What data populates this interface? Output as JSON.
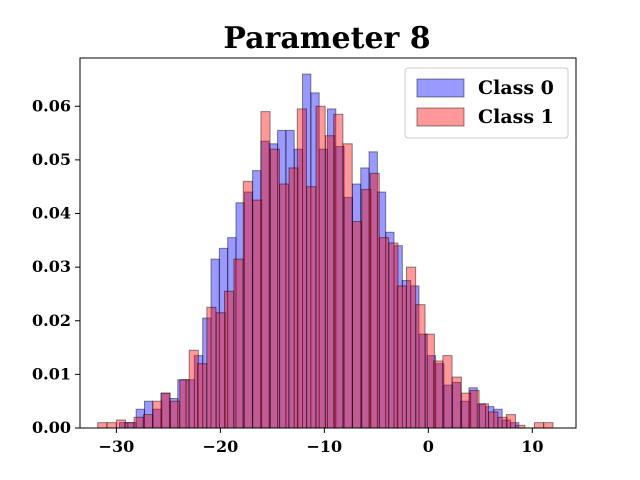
{
  "chart_data": {
    "type": "bar",
    "title": "Parameter 8",
    "xlabel": "",
    "ylabel": "",
    "xlim": [
      -33.5,
      14.2
    ],
    "ylim": [
      0,
      0.069
    ],
    "xticks": [
      -30,
      -20,
      -10,
      0,
      10
    ],
    "xtick_labels": [
      "−30",
      "−20",
      "−10",
      "0",
      "10"
    ],
    "yticks": [
      0.0,
      0.01,
      0.02,
      0.03,
      0.04,
      0.05,
      0.06
    ],
    "ytick_labels": [
      "0.00",
      "0.01",
      "0.02",
      "0.03",
      "0.04",
      "0.05",
      "0.06"
    ],
    "grid": false,
    "legend_position": "top-right",
    "series": [
      {
        "name": "Class 0",
        "color": "#0000ff",
        "bin_width": 0.8,
        "x": [
          -31.3,
          -30.5,
          -29.7,
          -28.9,
          -28.1,
          -27.3,
          -26.5,
          -25.7,
          -24.9,
          -24.1,
          -23.3,
          -22.5,
          -21.7,
          -20.9,
          -20.1,
          -19.3,
          -18.5,
          -17.7,
          -16.9,
          -16.1,
          -15.3,
          -14.5,
          -13.7,
          -12.9,
          -12.1,
          -11.3,
          -10.5,
          -9.7,
          -8.9,
          -8.1,
          -7.3,
          -6.5,
          -5.7,
          -4.9,
          -4.1,
          -3.3,
          -2.5,
          -1.7,
          -0.9,
          -0.1,
          0.7,
          1.5,
          2.3,
          3.1,
          3.9,
          4.7,
          5.5,
          6.3,
          7.1,
          7.9
        ],
        "values": [
          0.0,
          0.0,
          0.001,
          0.001,
          0.0035,
          0.005,
          0.0035,
          0.0065,
          0.0055,
          0.009,
          0.009,
          0.0135,
          0.0205,
          0.0315,
          0.0335,
          0.0355,
          0.042,
          0.044,
          0.048,
          0.0535,
          0.053,
          0.0555,
          0.0555,
          0.052,
          0.066,
          0.0625,
          0.052,
          0.0595,
          0.0525,
          0.043,
          0.0455,
          0.0485,
          0.0515,
          0.044,
          0.0365,
          0.034,
          0.0275,
          0.0265,
          0.0175,
          0.0135,
          0.012,
          0.008,
          0.0085,
          0.005,
          0.0075,
          0.0045,
          0.004,
          0.0035,
          0.0015,
          0.001
        ]
      },
      {
        "name": "Class 1",
        "color": "#ff0000",
        "bin_width": 0.88,
        "x": [
          -31.8,
          -30.9,
          -30.0,
          -29.2,
          -28.3,
          -27.4,
          -26.5,
          -25.7,
          -24.8,
          -23.9,
          -23.0,
          -22.2,
          -21.3,
          -20.4,
          -19.6,
          -18.7,
          -17.8,
          -16.9,
          -16.1,
          -15.2,
          -14.3,
          -13.4,
          -12.6,
          -11.7,
          -10.8,
          -9.9,
          -9.1,
          -8.2,
          -7.3,
          -6.4,
          -5.6,
          -4.7,
          -3.8,
          -3.0,
          -2.1,
          -1.2,
          -0.3,
          0.5,
          1.4,
          2.3,
          3.2,
          4.0,
          4.9,
          5.8,
          6.7,
          7.5,
          8.4,
          9.3,
          10.2,
          11.1
        ],
        "values": [
          0.001,
          0.001,
          0.0015,
          0.001,
          0.002,
          0.0025,
          0.005,
          0.0065,
          0.005,
          0.009,
          0.0145,
          0.012,
          0.0225,
          0.0215,
          0.0255,
          0.0315,
          0.046,
          0.0425,
          0.059,
          0.052,
          0.0455,
          0.0485,
          0.0595,
          0.045,
          0.06,
          0.0545,
          0.0585,
          0.053,
          0.0385,
          0.0445,
          0.0475,
          0.0355,
          0.0345,
          0.0265,
          0.03,
          0.023,
          0.0175,
          0.0125,
          0.0135,
          0.0095,
          0.0065,
          0.007,
          0.0045,
          0.003,
          0.002,
          0.0025,
          0.0005,
          0.0,
          0.001,
          0.001
        ]
      }
    ]
  }
}
